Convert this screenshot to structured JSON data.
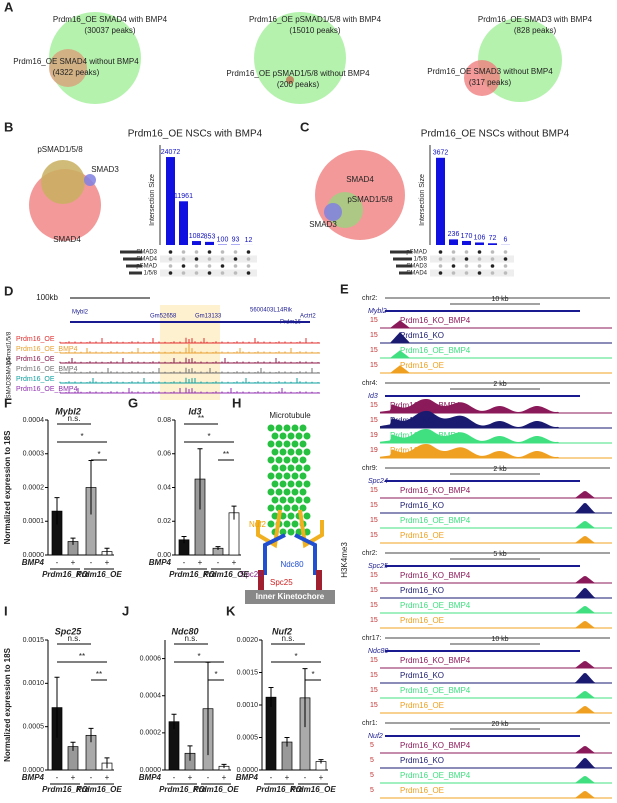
{
  "panel_labels": [
    "A",
    "B",
    "C",
    "D",
    "E",
    "F",
    "G",
    "H",
    "I",
    "J",
    "K"
  ],
  "venns": [
    {
      "big": "Prdm16_OE SMAD4 with BMP4",
      "big_peaks": "(30037 peaks)",
      "small": "Prdm16_OE SMAD4 without BMP4",
      "small_peaks": "(4322 peaks)"
    },
    {
      "big": "Prdm16_OE pSMAD1/5/8 with BMP4",
      "big_peaks": "(15010 peaks)",
      "small": "Prdm16_OE pSMAD1/5/8 without BMP4",
      "small_peaks": "(200 peaks)"
    },
    {
      "big": "Prdm16_OE SMAD3 with BMP4",
      "big_peaks": "(828 peaks)",
      "small": "Prdm16_OE SMAD3 without BMP4",
      "small_peaks": "(317 peaks)"
    }
  ],
  "upsets": [
    {
      "title": "Prdm16_OE NSCs with BMP4",
      "sets": [
        "pSMAD1/5/8",
        "SMAD3",
        "SMAD4"
      ],
      "axis_label": "Intersection Size",
      "ylim": [
        0,
        26000
      ],
      "values": [
        24072,
        11961,
        1082,
        853,
        100,
        93,
        12
      ],
      "rows": [
        "SMAD3",
        "SMAD4",
        "pSMAD",
        "1/5/8"
      ]
    },
    {
      "title": "Prdm16_OE NSCs without BMP4",
      "sets": [
        "SMAD4",
        "pSMAD1/5/8",
        "SMAD3"
      ],
      "axis_label": "Intersection Size",
      "ylim": [
        0,
        4000
      ],
      "values": [
        3672,
        236,
        170,
        106,
        72,
        6
      ],
      "rows": [
        "pSMAD",
        "1/5/8",
        "SMAD3",
        "SMAD4"
      ]
    }
  ],
  "browser_d": {
    "scale": "100kb",
    "genes": [
      "Mybl2",
      "Gm52658",
      "Gm13133",
      "5600403L14Rik",
      "Prdm16",
      "Actrt2"
    ],
    "groups": [
      "pSmad1/5/8",
      "SMAD4",
      "SMAD3"
    ],
    "tracks": [
      {
        "name": "Prdm16_OE",
        "color": "#e03030"
      },
      {
        "name": "Prdm16_OE_BMP4",
        "color": "#e8a030"
      },
      {
        "name": "Prdm16_OE",
        "color": "#8b1a4a"
      },
      {
        "name": "Prdm16_OE_BMP4",
        "color": "#707070"
      },
      {
        "name": "Prdm16_OE",
        "color": "#10a0a0"
      },
      {
        "name": "Prdm16_OE_BMP4",
        "color": "#9030b0"
      }
    ]
  },
  "browser_e": {
    "side_label": "H3K4me3",
    "tracks": [
      {
        "name": "Prdm16_KO_BMP4",
        "color": "#8b1a5a"
      },
      {
        "name": "Prdm16_KO",
        "color": "#1a1a70"
      },
      {
        "name": "Prdm16_OE_BMP4",
        "color": "#40e080"
      },
      {
        "name": "Prdm16_OE",
        "color": "#f0a020"
      }
    ],
    "loci": [
      {
        "chr": "chr2:",
        "scale": "10 kb",
        "gene": "Mybl2",
        "ranges": [
          "15",
          "15",
          "15",
          "15"
        ]
      },
      {
        "chr": "chr4:",
        "scale": "2 kb",
        "gene": "Id3",
        "ranges": [
          "15",
          "15",
          "19",
          "19"
        ]
      },
      {
        "chr": "chr9:",
        "scale": "2 kb",
        "gene": "Spc24",
        "ranges": [
          "15",
          "15",
          "15",
          "15"
        ]
      },
      {
        "chr": "chr2:",
        "scale": "5 kb",
        "gene": "Spc25",
        "ranges": [
          "15",
          "15",
          "15",
          "15"
        ]
      },
      {
        "chr": "chr17:",
        "scale": "10 kb",
        "gene": "Ndc80",
        "ranges": [
          "15",
          "15",
          "15",
          "15"
        ]
      },
      {
        "chr": "chr1:",
        "scale": "20 kb",
        "gene": "Nuf2",
        "ranges": [
          "5",
          "5",
          "5",
          "5"
        ]
      }
    ]
  },
  "diagram_h": {
    "labels": [
      "Microtubule",
      "Nuf2",
      "Ndc80",
      "Spc24",
      "Spc25",
      "Inner Kinetochore"
    ]
  },
  "bar_charts": [
    {
      "gene": "Mybl2",
      "y_label": "Normalized expression to 18S",
      "ylim": [
        0,
        0.0004
      ],
      "yticks": [
        {
          "value": 0,
          "label": "0.0000"
        },
        {
          "value": 0.0001,
          "label": "0.0001"
        },
        {
          "value": 0.0002,
          "label": "0.0002"
        },
        {
          "value": 0.0003,
          "label": "0.0003"
        },
        {
          "value": 0.0004,
          "label": "0.0004"
        }
      ],
      "values": [
        0.00013,
        4e-05,
        0.0002,
        1e-05
      ],
      "errors": [
        4e-05,
        1e-05,
        8e-05,
        1e-05
      ],
      "signs": [
        "n.s.",
        "*",
        "*"
      ]
    },
    {
      "gene": "Id3",
      "ylim": [
        0,
        0.08
      ],
      "yticks": [
        {
          "value": 0,
          "label": "0.00"
        },
        {
          "value": 0.02,
          "label": "0.02"
        },
        {
          "value": 0.04,
          "label": "0.04"
        },
        {
          "value": 0.06,
          "label": "0.06"
        },
        {
          "value": 0.08,
          "label": "0.08"
        }
      ],
      "values": [
        0.009,
        0.045,
        0.004,
        0.025
      ],
      "errors": [
        0.002,
        0.018,
        0.001,
        0.004
      ],
      "signs": [
        "**",
        "*",
        "**"
      ]
    },
    {
      "gene": "Spc25",
      "y_label": "Normalized expression to 18S",
      "ylim": [
        0,
        0.0015
      ],
      "yticks": [
        {
          "value": 0,
          "label": "0.0000"
        },
        {
          "value": 0.0005,
          "label": "0.0005"
        },
        {
          "value": 0.001,
          "label": "0.0010"
        },
        {
          "value": 0.0015,
          "label": "0.0015"
        }
      ],
      "values": [
        0.00072,
        0.00027,
        0.0004,
        8e-05
      ],
      "errors": [
        0.00035,
        5e-05,
        8e-05,
        6e-05
      ],
      "signs": [
        "n.s.",
        "**",
        "**"
      ]
    },
    {
      "gene": "Ndc80",
      "ylim": [
        0,
        0.0007
      ],
      "yticks": [
        {
          "value": 0,
          "label": "0.0000"
        },
        {
          "value": 0.0002,
          "label": "0.0002"
        },
        {
          "value": 0.0004,
          "label": "0.0004"
        },
        {
          "value": 0.0006,
          "label": "0.0006"
        }
      ],
      "values": [
        0.00026,
        9e-05,
        0.00033,
        2e-05
      ],
      "errors": [
        4e-05,
        4e-05,
        0.00025,
        1e-05
      ],
      "signs": [
        "n.s.",
        "*",
        "*"
      ]
    },
    {
      "gene": "Nuf2",
      "ylim": [
        0,
        0.002
      ],
      "yticks": [
        {
          "value": 0,
          "label": "0.0000"
        },
        {
          "value": 0.0005,
          "label": "0.0005"
        },
        {
          "value": 0.001,
          "label": "0.0010"
        },
        {
          "value": 0.0015,
          "label": "0.0015"
        },
        {
          "value": 0.002,
          "label": "0.0020"
        }
      ],
      "values": [
        0.00112,
        0.00043,
        0.00111,
        0.00013
      ],
      "errors": [
        0.00015,
        7e-05,
        0.00045,
        3e-05
      ],
      "signs": [
        "n.s.",
        "*",
        "*"
      ]
    }
  ],
  "bar_colors": [
    "#111111",
    "#999999",
    "#aaaaaa",
    "#ffffff"
  ],
  "x_signs": [
    "-",
    "+",
    "-",
    "+"
  ],
  "treatment": "BMP4",
  "groups": [
    "Prdm16_KO",
    "Prdm16_OE"
  ]
}
